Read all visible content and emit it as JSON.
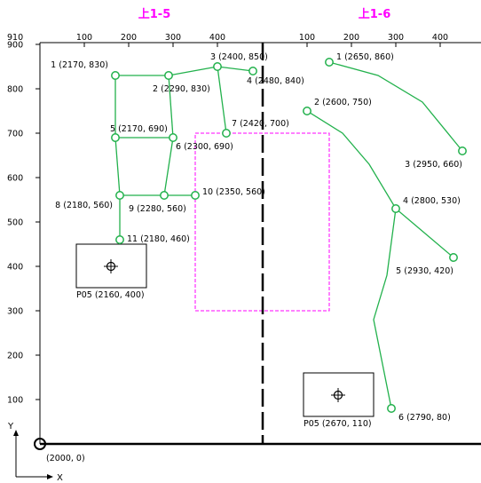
{
  "section_titles": [
    "上1-5",
    "上1-6"
  ],
  "top_axis_left": {
    "origin_label": "910",
    "ticks": [
      "100",
      "200",
      "300",
      "400"
    ]
  },
  "top_axis_right": {
    "ticks": [
      "100",
      "200",
      "300",
      "400"
    ]
  },
  "y_axis": {
    "ticks": [
      "900",
      "800",
      "700",
      "600",
      "500",
      "400",
      "300",
      "200",
      "100"
    ]
  },
  "origin_label": "(2000, 0)",
  "axis_letters": {
    "x": "X",
    "y": "Y"
  },
  "colors": {
    "title": "#ff00ff",
    "path": "#22b14c",
    "dashed_box": "#ff00ff",
    "axis": "#000000"
  },
  "left_points": [
    {
      "label": "1 (2170, 830)",
      "x": 2170,
      "y": 830
    },
    {
      "label": "2 (2290, 830)",
      "x": 2290,
      "y": 830
    },
    {
      "label": "3 (2400, 850)",
      "x": 2400,
      "y": 850
    },
    {
      "label": "4 (2480, 840)",
      "x": 2480,
      "y": 840
    },
    {
      "label": "5 (2170, 690)",
      "x": 2170,
      "y": 690
    },
    {
      "label": "6 (2300, 690)",
      "x": 2300,
      "y": 690
    },
    {
      "label": "7 (2420, 700)",
      "x": 2420,
      "y": 700
    },
    {
      "label": "8 (2180, 560)",
      "x": 2180,
      "y": 560
    },
    {
      "label": "9 (2280, 560)",
      "x": 2280,
      "y": 560
    },
    {
      "label": "10 (2350, 560)",
      "x": 2350,
      "y": 560
    },
    {
      "label": "11 (2180, 460)",
      "x": 2180,
      "y": 460
    }
  ],
  "left_edges": [
    [
      0,
      1
    ],
    [
      1,
      2
    ],
    [
      2,
      3
    ],
    [
      0,
      4
    ],
    [
      1,
      5
    ],
    [
      2,
      6
    ],
    [
      4,
      5
    ],
    [
      4,
      7
    ],
    [
      5,
      8
    ],
    [
      7,
      8
    ],
    [
      8,
      9
    ],
    [
      7,
      10
    ]
  ],
  "right_points": [
    {
      "label": "1 (2650, 860)",
      "x": 2650,
      "y": 860
    },
    {
      "label": "2 (2600, 750)",
      "x": 2600,
      "y": 750
    },
    {
      "label": "3 (2950, 660)",
      "x": 2950,
      "y": 660
    },
    {
      "label": "4 (2800, 530)",
      "x": 2800,
      "y": 530
    },
    {
      "label": "5 (2930, 420)",
      "x": 2930,
      "y": 420
    },
    {
      "label": "6 (2790, 80)",
      "x": 2790,
      "y": 80
    }
  ],
  "right_paths": [
    [
      [
        2650,
        860
      ],
      [
        2760,
        830
      ],
      [
        2860,
        770
      ],
      [
        2950,
        660
      ]
    ],
    [
      [
        2600,
        750
      ],
      [
        2680,
        700
      ],
      [
        2740,
        630
      ],
      [
        2800,
        530
      ],
      [
        2930,
        420
      ]
    ],
    [
      [
        2800,
        530
      ],
      [
        2780,
        380
      ],
      [
        2750,
        280
      ],
      [
        2770,
        180
      ],
      [
        2790,
        80
      ]
    ]
  ],
  "markers": [
    {
      "label": "P05 (2160, 400)",
      "x": 2160,
      "y": 400
    },
    {
      "label": "P05 (2670, 110)",
      "x": 2670,
      "y": 110
    }
  ],
  "dashed_box": {
    "x1": 2350,
    "y1": 300,
    "x2": 2650,
    "y2": 700
  },
  "divider_x": 2500
}
